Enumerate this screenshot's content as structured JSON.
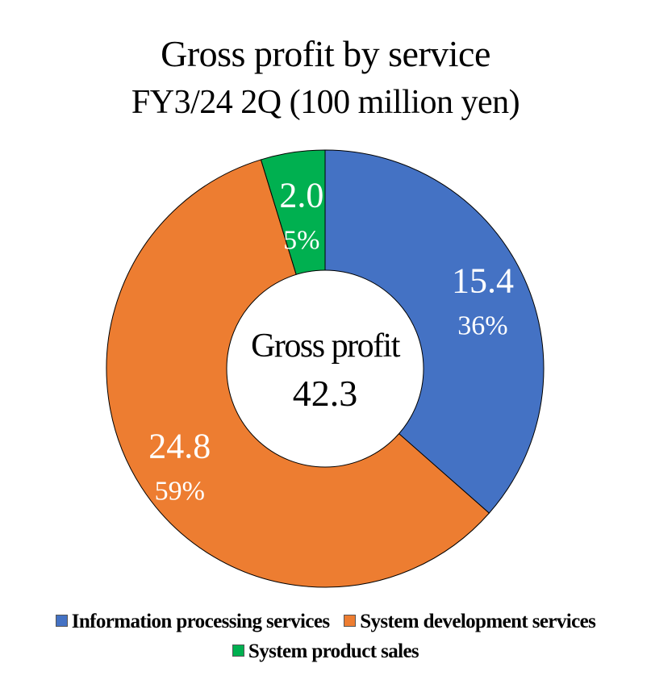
{
  "chart_data": {
    "type": "pie",
    "title": "Gross profit by service",
    "subtitle": "FY3/24 2Q (100 million yen)",
    "center_label": "Gross profit",
    "center_value": "42.3",
    "slices": [
      {
        "name": "Information processing services",
        "value": 15.4,
        "value_label": "15.4",
        "percent_label": "36%",
        "color": "#4472C4"
      },
      {
        "name": "System development services",
        "value": 24.8,
        "value_label": "24.8",
        "percent_label": "59%",
        "color": "#ED7D31"
      },
      {
        "name": "System product sales",
        "value": 2.0,
        "value_label": "2.0",
        "percent_label": "5%",
        "color": "#00B050"
      }
    ],
    "legend_position": "bottom"
  }
}
